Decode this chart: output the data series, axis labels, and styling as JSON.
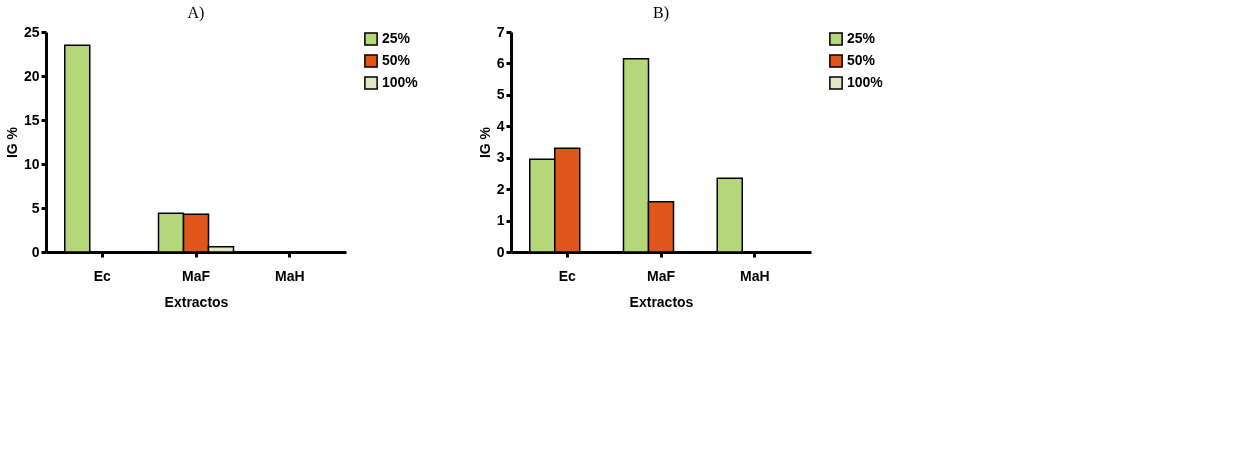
{
  "chart_data": [
    {
      "type": "bar",
      "title": "A)",
      "xlabel": "Extractos",
      "ylabel": "IG %",
      "categories": [
        "Ec",
        "MaF",
        "MaH"
      ],
      "series": [
        {
          "name": "25%",
          "color": "#b5d77a",
          "values": [
            23.5,
            4.4,
            null
          ]
        },
        {
          "name": "50%",
          "color": "#e0561a",
          "values": [
            null,
            4.3,
            null
          ]
        },
        {
          "name": "100%",
          "color": "#e6e6c4",
          "values": [
            null,
            0.6,
            null
          ]
        }
      ],
      "ylim": [
        0,
        25
      ],
      "yticks": [
        0,
        5,
        10,
        15,
        20,
        25
      ],
      "grid": false,
      "legend": "top right"
    },
    {
      "type": "bar",
      "title": "B)",
      "xlabel": "Extractos",
      "ylabel": "IG %",
      "categories": [
        "Ec",
        "MaF",
        "MaH"
      ],
      "series": [
        {
          "name": "25%",
          "color": "#b5d77a",
          "values": [
            2.95,
            6.15,
            2.35
          ]
        },
        {
          "name": "50%",
          "color": "#e0561a",
          "values": [
            3.3,
            1.6,
            null
          ]
        },
        {
          "name": "100%",
          "color": "#e6e6c4",
          "values": [
            null,
            null,
            null
          ]
        }
      ],
      "ylim": [
        0,
        7
      ],
      "yticks": [
        0,
        1,
        2,
        3,
        4,
        5,
        6,
        7
      ],
      "grid": false,
      "legend": "top right"
    }
  ]
}
